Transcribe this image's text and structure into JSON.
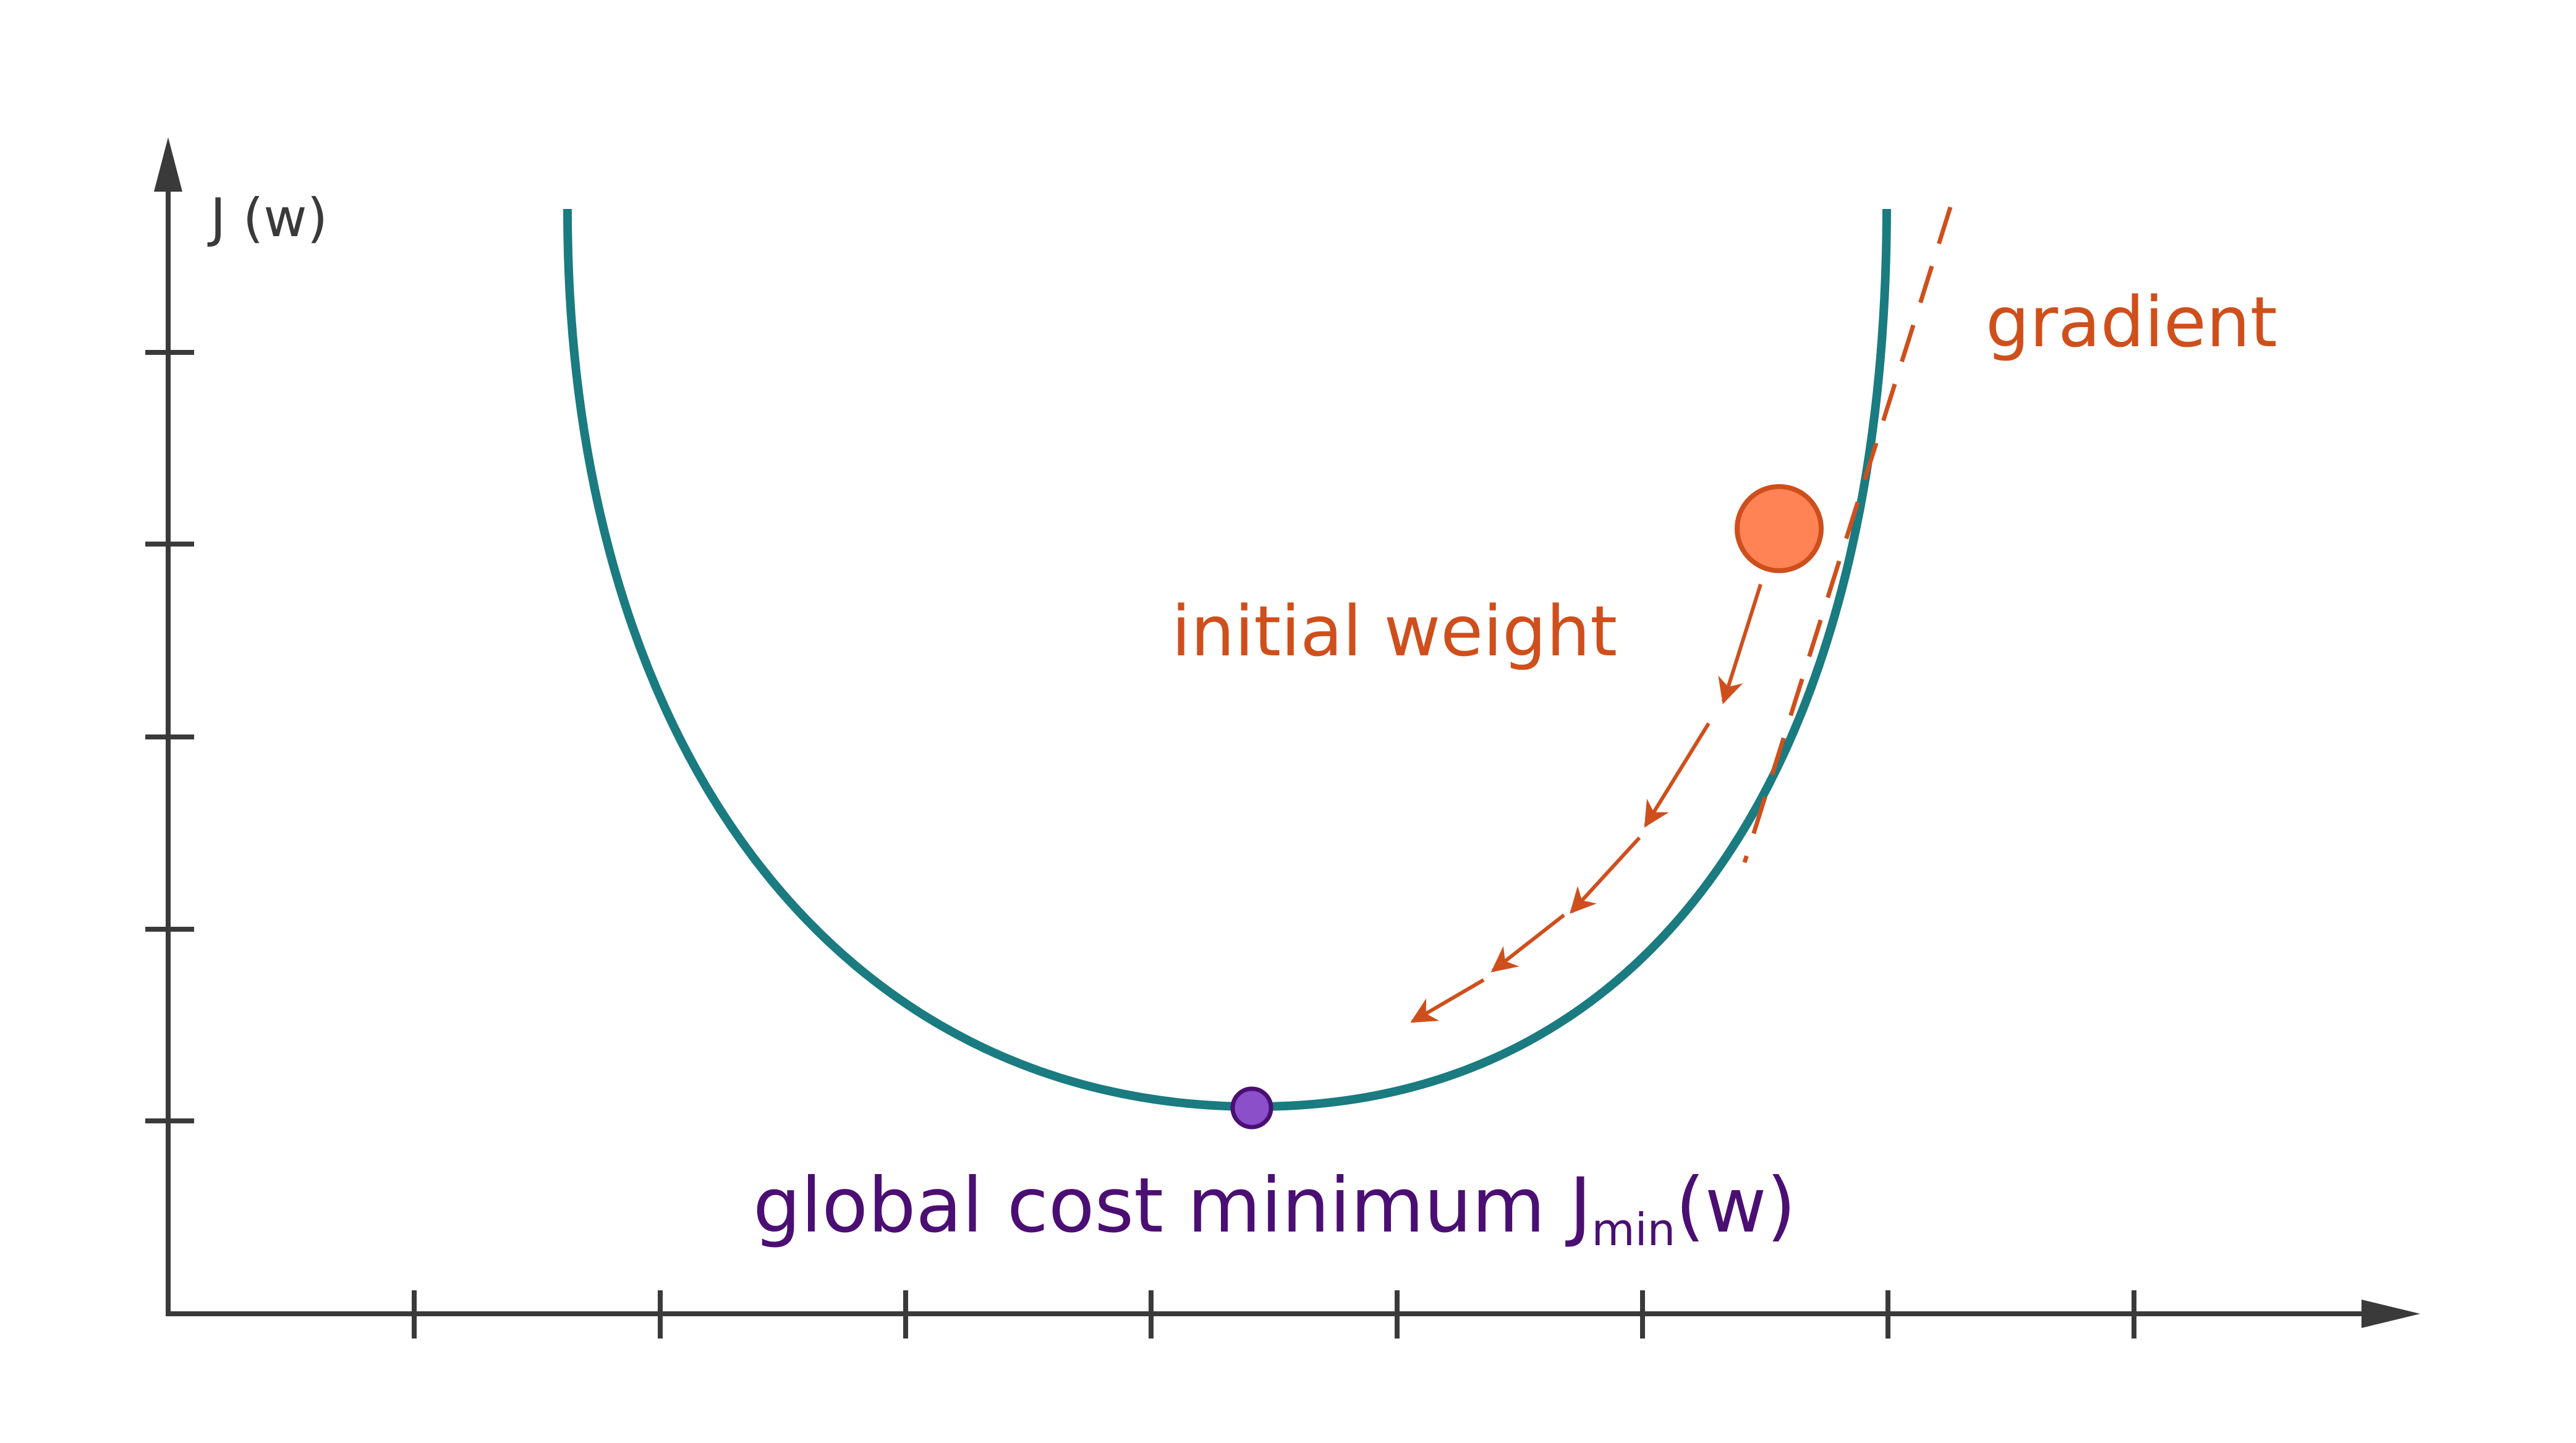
{
  "diagram": {
    "y_axis_label": "J (w)",
    "gradient_label": "gradient",
    "initial_weight_label": "initial weight",
    "minimum_label": {
      "prefix": "global cost minimum J",
      "subscript": "min",
      "suffix": "(w)"
    }
  },
  "colors": {
    "axis": "#3a3a3a",
    "curve": "#1a7b80",
    "gradient": "#cf4f1c",
    "initial_weight_fill": "#ff8355",
    "minimum_point": "#8a4fc9",
    "minimum_text": "#4b0f73",
    "background": "#ffffff"
  },
  "icons": {
    "initial_weight_marker": "filled-circle",
    "minimum_marker": "filled-circle"
  }
}
